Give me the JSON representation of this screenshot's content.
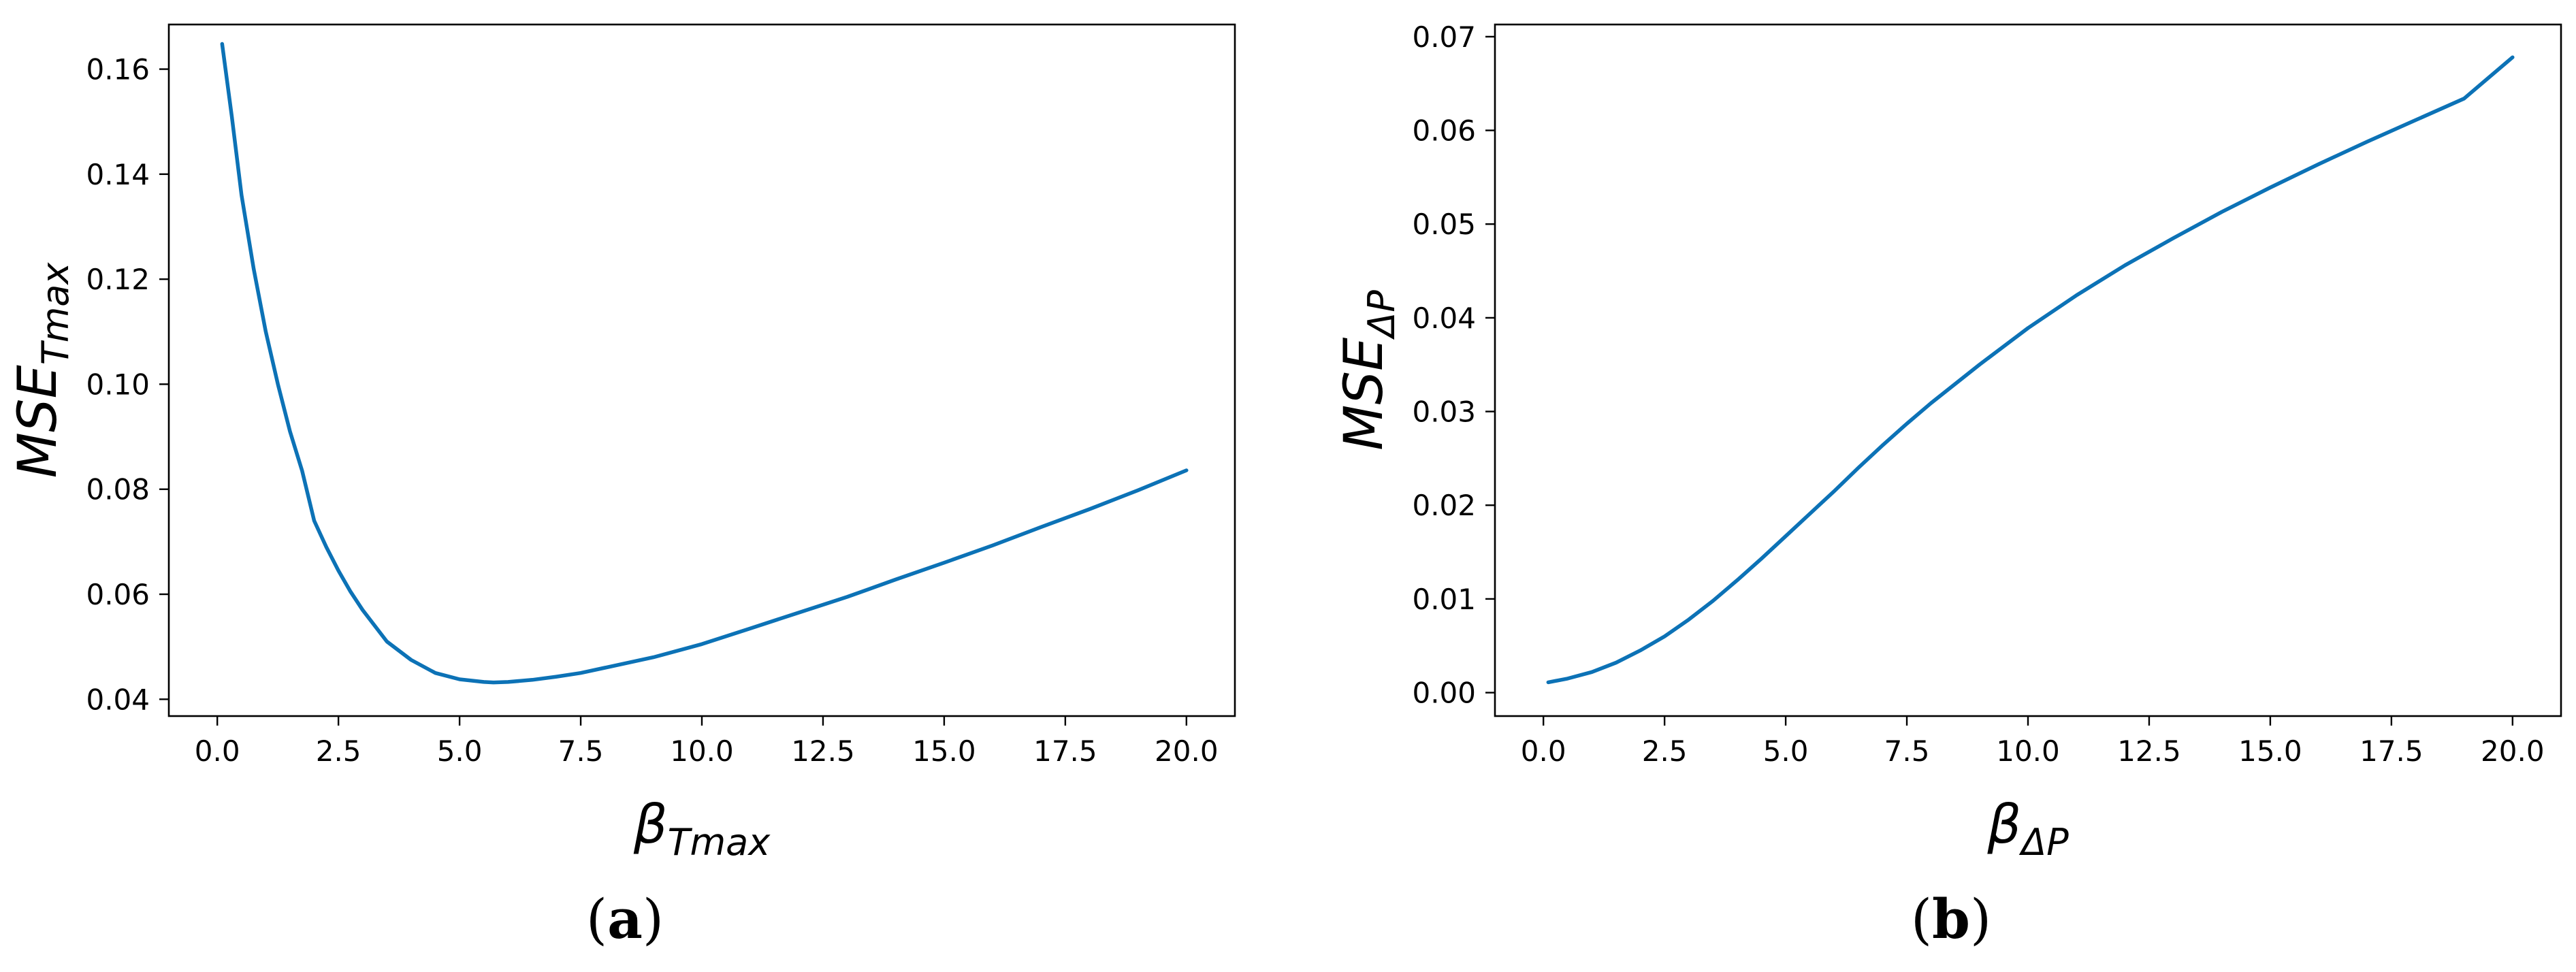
{
  "chart_data": [
    {
      "type": "line",
      "panel_label": "a",
      "ylabel": {
        "base": "MSE",
        "sub": "Tmax"
      },
      "xlabel": {
        "base": "β",
        "sub": "Tmax"
      },
      "xlim": [
        -1.0,
        21.0
      ],
      "ylim": [
        0.0368,
        0.1685
      ],
      "xticks": [
        0.0,
        2.5,
        5.0,
        7.5,
        10.0,
        12.5,
        15.0,
        17.5,
        20.0
      ],
      "xtick_labels": [
        "0.0",
        "2.5",
        "5.0",
        "7.5",
        "10.0",
        "12.5",
        "15.0",
        "17.5",
        "20.0"
      ],
      "yticks": [
        0.04,
        0.06,
        0.08,
        0.1,
        0.12,
        0.14,
        0.16
      ],
      "ytick_labels": [
        "0.04",
        "0.06",
        "0.08",
        "0.10",
        "0.12",
        "0.14",
        "0.16"
      ],
      "grid": false,
      "series": [
        {
          "color": "#0c72b6",
          "x": [
            0.1,
            0.3,
            0.5,
            0.75,
            1.0,
            1.25,
            1.5,
            1.75,
            2.0,
            2.25,
            2.5,
            2.75,
            3.0,
            3.5,
            4.0,
            4.5,
            5.0,
            5.5,
            5.7,
            6.0,
            6.5,
            7.0,
            7.5,
            8.0,
            9.0,
            10.0,
            11.0,
            12.0,
            13.0,
            14.0,
            15.0,
            16.0,
            17.0,
            18.0,
            19.0,
            20.0
          ],
          "y": [
            0.1648,
            0.151,
            0.136,
            0.122,
            0.11,
            0.1,
            0.091,
            0.0835,
            0.074,
            0.069,
            0.0645,
            0.0605,
            0.057,
            0.051,
            0.0475,
            0.045,
            0.0438,
            0.0433,
            0.0432,
            0.0433,
            0.0437,
            0.0443,
            0.045,
            0.046,
            0.048,
            0.0505,
            0.0535,
            0.0565,
            0.0595,
            0.0628,
            0.066,
            0.0693,
            0.0728,
            0.0762,
            0.0798,
            0.0836
          ]
        }
      ]
    },
    {
      "type": "line",
      "panel_label": "b",
      "ylabel": {
        "base": "MSE",
        "sub": "ΔP"
      },
      "xlabel": {
        "base": "β",
        "sub": "ΔP"
      },
      "xlim": [
        -1.0,
        21.0
      ],
      "ylim": [
        -0.0025,
        0.0713
      ],
      "xticks": [
        0.0,
        2.5,
        5.0,
        7.5,
        10.0,
        12.5,
        15.0,
        17.5,
        20.0
      ],
      "xtick_labels": [
        "0.0",
        "2.5",
        "5.0",
        "7.5",
        "10.0",
        "12.5",
        "15.0",
        "17.5",
        "20.0"
      ],
      "yticks": [
        0.0,
        0.01,
        0.02,
        0.03,
        0.04,
        0.05,
        0.06,
        0.07
      ],
      "ytick_labels": [
        "0.00",
        "0.01",
        "0.02",
        "0.03",
        "0.04",
        "0.05",
        "0.06",
        "0.07"
      ],
      "grid": false,
      "series": [
        {
          "color": "#0c72b6",
          "x": [
            0.1,
            0.5,
            1.0,
            1.5,
            2.0,
            2.5,
            3.0,
            3.5,
            4.0,
            4.5,
            5.0,
            5.5,
            6.0,
            6.5,
            7.0,
            7.5,
            8.0,
            9.0,
            10.0,
            11.0,
            12.0,
            13.0,
            14.0,
            15.0,
            16.0,
            17.0,
            18.0,
            19.0,
            20.0
          ],
          "y": [
            0.0011,
            0.0015,
            0.0022,
            0.0032,
            0.0045,
            0.006,
            0.0078,
            0.0098,
            0.012,
            0.0143,
            0.0167,
            0.0191,
            0.0215,
            0.024,
            0.0264,
            0.0287,
            0.0309,
            0.035,
            0.0389,
            0.0424,
            0.0456,
            0.0485,
            0.0513,
            0.0539,
            0.0564,
            0.0588,
            0.0611,
            0.0634,
            0.0678
          ]
        }
      ]
    }
  ]
}
